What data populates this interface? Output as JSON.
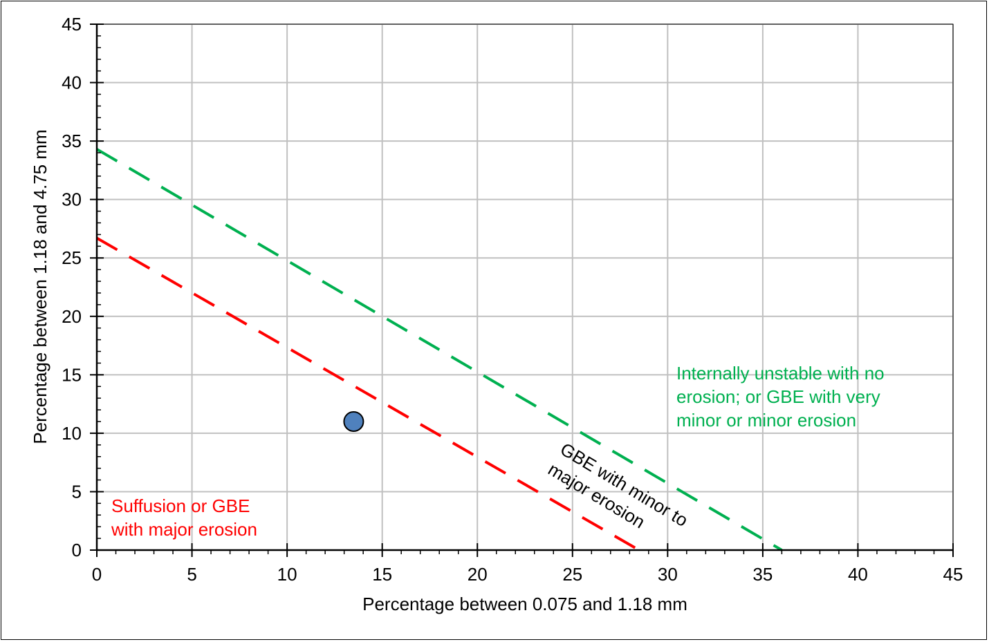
{
  "chart_data": {
    "type": "scatter",
    "title": "",
    "xlabel": "Percentage between 0.075 and 1.18 mm",
    "ylabel": "Percentage between 1.18 and 4.75 mm",
    "xlim": [
      0,
      45
    ],
    "ylim": [
      0,
      45
    ],
    "xticks": [
      "0",
      "5",
      "10",
      "15",
      "20",
      "25",
      "30",
      "35",
      "40",
      "45"
    ],
    "yticks": [
      "0",
      "5",
      "10",
      "15",
      "20",
      "25",
      "30",
      "35",
      "40",
      "45"
    ],
    "grid": true,
    "points": [
      {
        "x": 13.5,
        "y": 11,
        "color": "#4f81bd"
      }
    ],
    "lines": [
      {
        "x": [
          0,
          36.0
        ],
        "y": [
          34.3,
          0
        ],
        "color": "#00b050",
        "style": "dashed"
      },
      {
        "x": [
          0,
          28.5
        ],
        "y": [
          26.7,
          0
        ],
        "color": "#ff0000",
        "style": "dashed"
      }
    ],
    "annotations": [
      {
        "lines": [
          "Internally unstable with no",
          "erosion; or GBE with very",
          "minor or minor erosion"
        ],
        "color": "#00b050"
      },
      {
        "lines": [
          "GBE with minor to",
          "major erosion"
        ],
        "color": "#000000"
      },
      {
        "lines": [
          "Suffusion or GBE",
          "with major erosion"
        ],
        "color": "#ff0000"
      }
    ]
  }
}
